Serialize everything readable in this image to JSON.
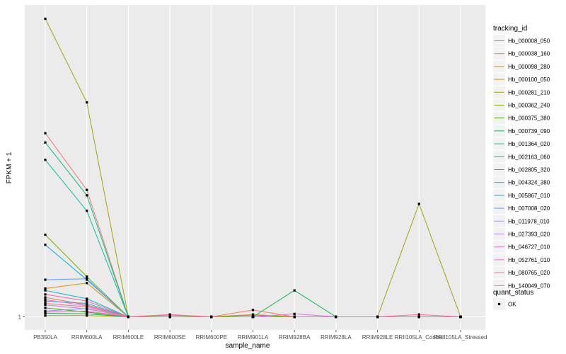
{
  "chart_data": {
    "type": "line",
    "title": "",
    "xlabel": "sample_name",
    "ylabel": "FPKM + 1",
    "y_scale": "log",
    "y_ticks": [
      1
    ],
    "y_tick_labels": [
      "1"
    ],
    "grid": true,
    "background": "#ebebeb",
    "legend_position": "right",
    "categories": [
      "PB350LA",
      "RRIM600LA",
      "RRIM600LE",
      "RRIM600SE",
      "RRIM600PE",
      "RRIM901LA",
      "RRIM928BA",
      "RRIM928LA",
      "RRIM928LE",
      "RRII105LA_Control",
      "RRII105LA_Stressed"
    ],
    "legend": {
      "title": "tracking_id",
      "items": [
        "Hb_000008_050",
        "Hb_000038_160",
        "Hb_000098_280",
        "Hb_000100_050",
        "Hb_000281_210",
        "Hb_000362_240",
        "Hb_000375_380",
        "Hb_000739_090",
        "Hb_001364_020",
        "Hb_002163_060",
        "Hb_002805_320",
        "Hb_004324_380",
        "Hb_005867_010",
        "Hb_007008_020",
        "Hb_011978_010",
        "Hb_027393_020",
        "Hb_046727_010",
        "Hb_052761_010",
        "Hb_080765_020",
        "Hb_140049_070"
      ]
    },
    "shape_legend": {
      "title": "quant_status",
      "items": [
        "OK"
      ]
    },
    "series": [
      {
        "name": "Hb_000008_050",
        "color": "#F8766D",
        "values": [
          21.0,
          8.2,
          1,
          1,
          1,
          1,
          1,
          1,
          1,
          1,
          1
        ]
      },
      {
        "name": "Hb_000038_160",
        "color": "#EA8331",
        "values": [
          1.38,
          1.22,
          1,
          1,
          1,
          1.04,
          1,
          1,
          1,
          1,
          1
        ]
      },
      {
        "name": "Hb_000098_280",
        "color": "#D89000",
        "values": [
          1.6,
          1.75,
          1,
          1,
          1,
          1,
          1,
          1,
          1,
          1,
          1
        ]
      },
      {
        "name": "Hb_000100_050",
        "color": "#C09B00",
        "values": [
          1.02,
          1.02,
          1,
          1,
          1,
          1,
          1,
          1,
          1,
          1,
          1
        ]
      },
      {
        "name": "Hb_000281_210",
        "color": "#A3A500",
        "values": [
          140,
          35,
          1,
          1.03,
          1,
          1,
          1,
          1,
          1,
          6.5,
          1
        ]
      },
      {
        "name": "Hb_000362_240",
        "color": "#7CAE00",
        "values": [
          3.9,
          1.95,
          1,
          1,
          1,
          1.03,
          1,
          1,
          1,
          1,
          1
        ]
      },
      {
        "name": "Hb_000375_380",
        "color": "#39B600",
        "values": [
          1.16,
          1.08,
          1,
          1,
          1,
          1,
          1,
          1,
          1,
          1,
          1
        ]
      },
      {
        "name": "Hb_000739_090",
        "color": "#00BB4E",
        "values": [
          1.06,
          1.05,
          1,
          1,
          1,
          1,
          1.55,
          1,
          1,
          1,
          1
        ]
      },
      {
        "name": "Hb_001364_020",
        "color": "#00BF7D",
        "values": [
          18.0,
          7.5,
          1,
          1,
          1,
          1,
          1,
          1,
          1,
          1,
          1
        ]
      },
      {
        "name": "Hb_002163_060",
        "color": "#00C1A3",
        "values": [
          13.5,
          5.8,
          1,
          1,
          1,
          1,
          1,
          1,
          1,
          1,
          1
        ]
      },
      {
        "name": "Hb_002805_320",
        "color": "#00BFC4",
        "values": [
          1.55,
          1.35,
          1,
          1,
          1,
          1,
          1,
          1,
          1,
          1,
          1
        ]
      },
      {
        "name": "Hb_004324_380",
        "color": "#00B8E7",
        "values": [
          1.3,
          1.25,
          1,
          1,
          1,
          1,
          1,
          1,
          1,
          1,
          1
        ]
      },
      {
        "name": "Hb_005867_010",
        "color": "#00A9FF",
        "values": [
          3.3,
          1.85,
          1,
          1,
          1,
          1,
          1,
          1,
          1,
          1,
          1
        ]
      },
      {
        "name": "Hb_007008_020",
        "color": "#619CFF",
        "values": [
          1.85,
          1.88,
          1,
          1,
          1,
          1,
          1,
          1,
          1,
          1,
          1
        ]
      },
      {
        "name": "Hb_011978_010",
        "color": "#9590FF",
        "values": [
          1.1,
          1.15,
          1,
          1,
          1,
          1,
          1,
          1,
          1,
          1,
          1
        ]
      },
      {
        "name": "Hb_027393_020",
        "color": "#B983FF",
        "values": [
          1.22,
          1.14,
          1,
          1,
          1,
          1,
          1,
          1,
          1,
          1,
          1
        ]
      },
      {
        "name": "Hb_046727_010",
        "color": "#E76BF3",
        "values": [
          1.33,
          1.2,
          1,
          1,
          1,
          1,
          1.05,
          1,
          1,
          1,
          1
        ]
      },
      {
        "name": "Hb_052761_010",
        "color": "#FD61D1",
        "values": [
          1.08,
          1.1,
          1,
          1,
          1,
          1,
          1,
          1,
          1,
          1,
          1
        ]
      },
      {
        "name": "Hb_080765_020",
        "color": "#FF67A4",
        "values": [
          1.45,
          1.3,
          1,
          1.04,
          1,
          1,
          1,
          1,
          1,
          1.04,
          1
        ]
      },
      {
        "name": "Hb_140049_070",
        "color": "#F8766D",
        "values": [
          1.25,
          1.18,
          1,
          1,
          1,
          1.12,
          1,
          1,
          1,
          1,
          1
        ]
      }
    ]
  }
}
